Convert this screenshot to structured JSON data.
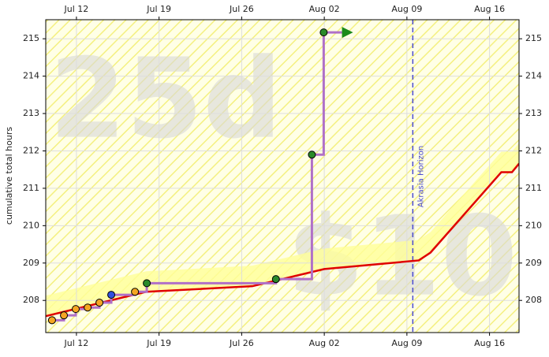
{
  "chart_data": {
    "type": "line",
    "ylabel": "cumulative total hours",
    "watermarks": [
      "25d",
      "$10"
    ],
    "xlim": [
      9.4,
      49.5
    ],
    "ylim": [
      207.14,
      215.51
    ],
    "xticks": [
      {
        "value": 12,
        "label": "Jul 12"
      },
      {
        "value": 19,
        "label": "Jul 19"
      },
      {
        "value": 26,
        "label": "Jul 26"
      },
      {
        "value": 33,
        "label": "Aug 02"
      },
      {
        "value": 40,
        "label": "Aug 09"
      },
      {
        "value": 47,
        "label": "Aug 16"
      }
    ],
    "yticks": [
      208,
      209,
      210,
      211,
      212,
      213,
      214,
      215
    ],
    "grid": true,
    "horizon": {
      "x": 40.5,
      "label": "Akrasia Horizon",
      "color": "#4a4ad0"
    },
    "series": [
      {
        "style": "road",
        "color": "#e00000",
        "x": [
          9.4,
          17.9,
          26.9,
          33,
          41,
          42,
          48,
          48.9,
          49.5
        ],
        "values": [
          207.58,
          208.23,
          208.38,
          208.84,
          209.07,
          209.28,
          211.43,
          211.43,
          211.66
        ]
      },
      {
        "style": "steps",
        "color": "#b070c8",
        "x": [
          9.93,
          10.94,
          10.94,
          11.94,
          11.94,
          12.95,
          12.95,
          13.95,
          13.95,
          14.95,
          14.95,
          16.96,
          16.96,
          17.96,
          17.96,
          28.9,
          28.9,
          31.95,
          31.95,
          32.95,
          32.95,
          34.5
        ],
        "values": [
          207.47,
          207.47,
          207.6,
          207.6,
          207.77,
          207.77,
          207.81,
          207.81,
          207.94,
          207.94,
          208.15,
          208.15,
          208.23,
          208.23,
          208.46,
          208.46,
          208.57,
          208.57,
          211.9,
          211.9,
          215.17,
          215.17
        ]
      },
      {
        "style": "points",
        "color": "#f5a623",
        "x": [
          9.93,
          10.94,
          11.94,
          12.95,
          13.95,
          16.96
        ],
        "values": [
          207.47,
          207.6,
          207.77,
          207.81,
          207.94,
          208.23
        ]
      },
      {
        "style": "points",
        "color": "#3050e0",
        "x": [
          14.95
        ],
        "values": [
          208.15
        ]
      },
      {
        "style": "points",
        "color": "#2a8a2a",
        "x": [
          17.96,
          28.9,
          31.95,
          32.95
        ],
        "values": [
          208.46,
          208.57,
          211.9,
          215.17
        ]
      }
    ]
  }
}
